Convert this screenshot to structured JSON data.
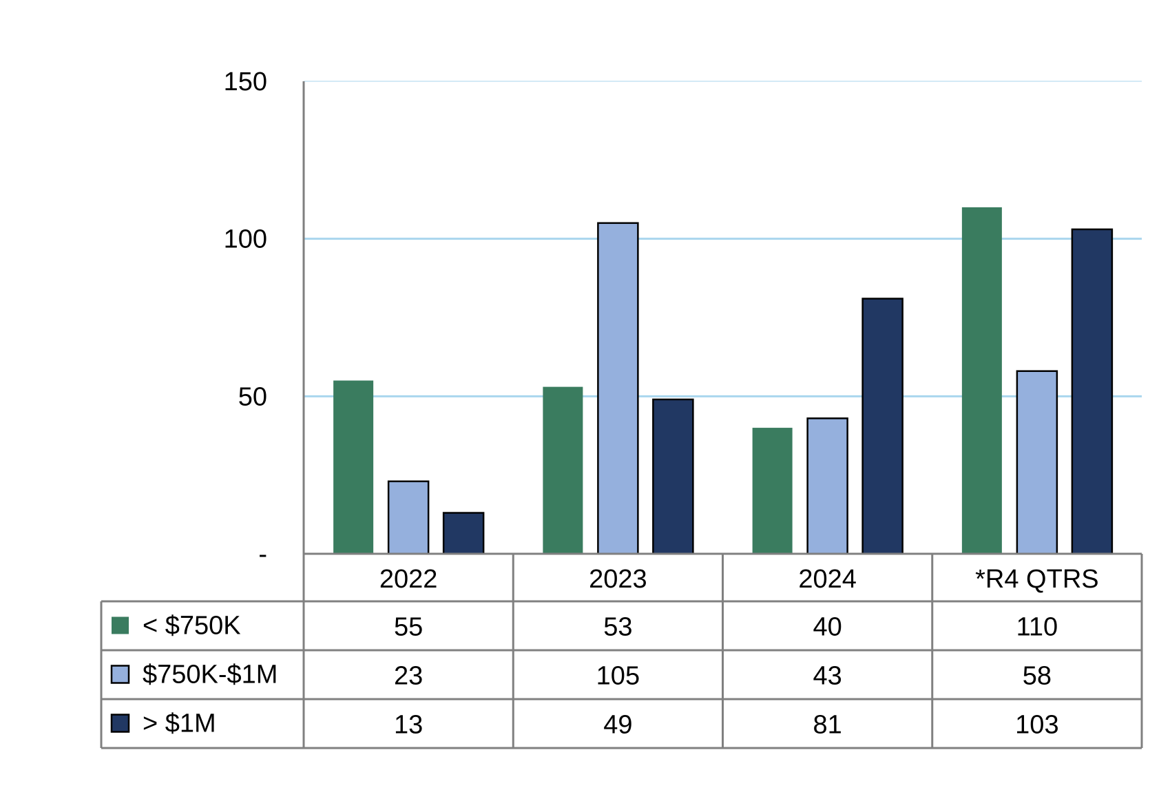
{
  "chart_data": {
    "type": "bar",
    "categories": [
      "2022",
      "2023",
      "2024",
      "*R4 QTRS"
    ],
    "series": [
      {
        "name": "< $750K",
        "values": [
          55,
          53,
          40,
          110
        ],
        "color": "#3A7C5F",
        "outlined": false
      },
      {
        "name": "$750K-$1M",
        "values": [
          23,
          105,
          43,
          58
        ],
        "color": "#95B0DD",
        "outlined": true
      },
      {
        "name": "> $1M",
        "values": [
          13,
          49,
          81,
          103
        ],
        "color": "#213863",
        "outlined": true
      }
    ],
    "ylim": [
      0,
      150
    ],
    "yticks": [
      {
        "value": 0,
        "label": "-"
      },
      {
        "value": 50,
        "label": "50"
      },
      {
        "value": 100,
        "label": "100"
      },
      {
        "value": 150,
        "label": "150"
      }
    ],
    "grid": true,
    "legend": "data-table",
    "title": "",
    "xlabel": "",
    "ylabel": "",
    "colors": {
      "grid": "#A9D6EE",
      "axis": "#7F7F7F",
      "table_border": "#808080",
      "bar_outline": "#000000"
    }
  }
}
